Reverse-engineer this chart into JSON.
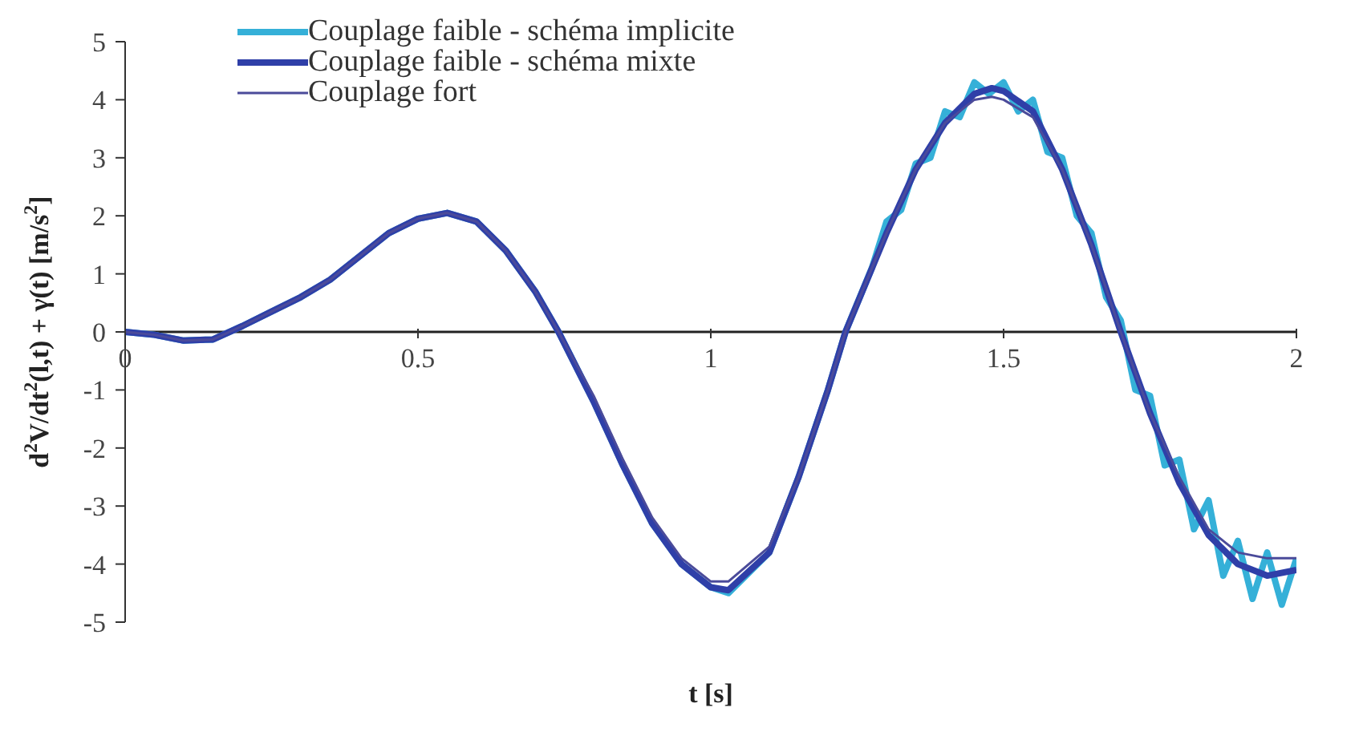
{
  "chart_data": {
    "type": "line",
    "xlabel": "t [s]",
    "ylabel": "d$^{2}$V/dt$^{2}$(l,t) + γ(t) [m/s$^{2}$]",
    "xlim": [
      0,
      2
    ],
    "ylim": [
      -5,
      5
    ],
    "xticks": [
      0,
      0.5,
      1,
      1.5,
      2
    ],
    "yticks": [
      -5,
      -4,
      -3,
      -2,
      -1,
      0,
      1,
      2,
      3,
      4,
      5
    ],
    "grid": false,
    "legend": "top left",
    "marker": "none",
    "line_style": "solid",
    "series": [
      {
        "name": "Couplage faible - schéma implicite",
        "color": "#35b0d8",
        "x": [
          0,
          0.05,
          0.1,
          0.15,
          0.2,
          0.25,
          0.3,
          0.35,
          0.4,
          0.45,
          0.5,
          0.55,
          0.6,
          0.65,
          0.7,
          0.74,
          0.8,
          0.85,
          0.9,
          0.95,
          1,
          1.03,
          1.1,
          1.15,
          1.2,
          1.23,
          1.275,
          1.3,
          1.325,
          1.35,
          1.375,
          1.4,
          1.425,
          1.45,
          1.475,
          1.5,
          1.525,
          1.55,
          1.575,
          1.6,
          1.625,
          1.65,
          1.675,
          1.7,
          1.725,
          1.75,
          1.775,
          1.8,
          1.825,
          1.85,
          1.875,
          1.9,
          1.925,
          1.95,
          1.975,
          2
        ],
        "values": [
          0,
          -0.05,
          -0.15,
          -0.13,
          0.1,
          0.35,
          0.6,
          0.9,
          1.3,
          1.7,
          1.95,
          2.05,
          1.9,
          1.4,
          0.7,
          0,
          -1.2,
          -2.3,
          -3.3,
          -4,
          -4.4,
          -4.5,
          -3.8,
          -2.5,
          -1,
          0,
          1.1,
          1.9,
          2.1,
          2.9,
          3,
          3.8,
          3.7,
          4.3,
          4.1,
          4.3,
          3.8,
          4,
          3.1,
          3,
          2,
          1.7,
          0.6,
          0.2,
          -1,
          -1.1,
          -2.3,
          -2.2,
          -3.4,
          -2.9,
          -4.2,
          -3.6,
          -4.6,
          -3.8,
          -4.7,
          -3.9
        ]
      },
      {
        "name": "Couplage faible - schéma mixte",
        "color": "#2f3fa8",
        "x": [
          0,
          0.05,
          0.1,
          0.15,
          0.2,
          0.25,
          0.3,
          0.35,
          0.4,
          0.45,
          0.5,
          0.55,
          0.6,
          0.65,
          0.7,
          0.74,
          0.8,
          0.85,
          0.9,
          0.95,
          1,
          1.03,
          1.1,
          1.15,
          1.2,
          1.23,
          1.3,
          1.35,
          1.4,
          1.45,
          1.48,
          1.5,
          1.55,
          1.6,
          1.65,
          1.7,
          1.75,
          1.8,
          1.85,
          1.9,
          1.95,
          2
        ],
        "values": [
          0,
          -0.05,
          -0.15,
          -0.13,
          0.1,
          0.35,
          0.6,
          0.9,
          1.3,
          1.7,
          1.95,
          2.05,
          1.9,
          1.4,
          0.7,
          0,
          -1.2,
          -2.3,
          -3.3,
          -4,
          -4.4,
          -4.45,
          -3.8,
          -2.5,
          -1,
          0,
          1.7,
          2.8,
          3.6,
          4.1,
          4.2,
          4.15,
          3.8,
          2.8,
          1.5,
          0,
          -1.4,
          -2.6,
          -3.5,
          -4,
          -4.2,
          -4.1
        ]
      },
      {
        "name": "Couplage fort",
        "color": "#4b4b9a",
        "x": [
          0,
          0.05,
          0.1,
          0.15,
          0.2,
          0.25,
          0.3,
          0.35,
          0.4,
          0.45,
          0.5,
          0.55,
          0.6,
          0.65,
          0.7,
          0.74,
          0.8,
          0.85,
          0.9,
          0.95,
          1,
          1.03,
          1.1,
          1.15,
          1.2,
          1.23,
          1.3,
          1.35,
          1.4,
          1.45,
          1.48,
          1.5,
          1.55,
          1.6,
          1.65,
          1.7,
          1.75,
          1.8,
          1.85,
          1.9,
          1.95,
          2
        ],
        "values": [
          0,
          -0.05,
          -0.15,
          -0.13,
          0.1,
          0.35,
          0.6,
          0.9,
          1.3,
          1.7,
          1.95,
          2.05,
          1.9,
          1.4,
          0.7,
          0,
          -1.1,
          -2.2,
          -3.2,
          -3.9,
          -4.3,
          -4.3,
          -3.7,
          -2.5,
          -1,
          0,
          1.7,
          2.8,
          3.6,
          4,
          4.05,
          4,
          3.7,
          2.8,
          1.5,
          0,
          -1.4,
          -2.5,
          -3.4,
          -3.8,
          -3.9,
          -3.9
        ]
      }
    ]
  }
}
